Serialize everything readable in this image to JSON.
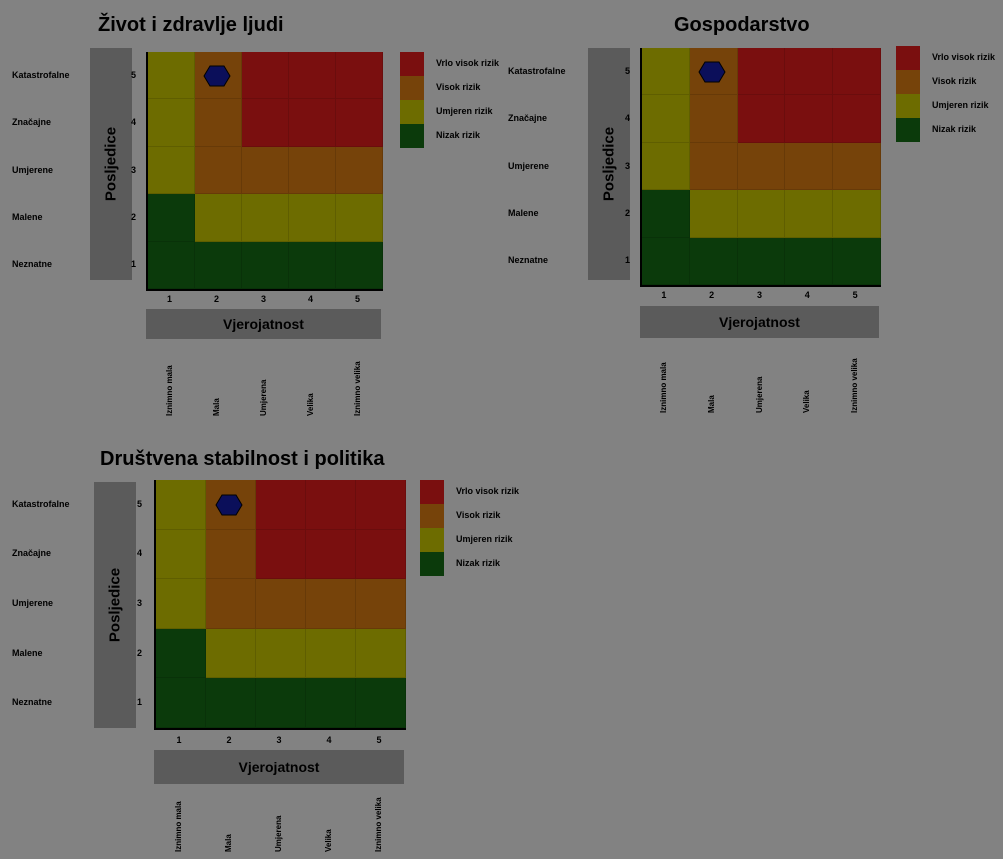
{
  "colors": {
    "background": "#828282",
    "band": "#5b5b5b",
    "low": "#0b3a0b",
    "moderate": "#6d6c00",
    "high": "#76430a",
    "very_high": "#7a0f0f",
    "marker": "#0b0f5a"
  },
  "chart_data": [
    {
      "type": "heatmap",
      "title": "Život i zdravlje ljudi",
      "xlabel": "Vjerojatnost",
      "ylabel": "Posljedice",
      "x_ticks": [
        "1",
        "2",
        "3",
        "4",
        "5"
      ],
      "x_tick_names": [
        "Iznimno mala",
        "Mala",
        "Umjerena",
        "Velika",
        "Iznimno velika"
      ],
      "y_ticks": [
        "1",
        "2",
        "3",
        "4",
        "5"
      ],
      "y_tick_names": [
        "Neznatne",
        "Malene",
        "Umjerene",
        "Značajne",
        "Katastrofalne"
      ],
      "legend": [
        "Vrlo visok rizik",
        "Visok rizik",
        "Umjeren rizik",
        "Nizak rizik"
      ],
      "legend_placement": "right",
      "risk_levels_by_row": [
        [
          1,
          1,
          1,
          1,
          1
        ],
        [
          1,
          2,
          2,
          2,
          2
        ],
        [
          2,
          3,
          3,
          3,
          3
        ],
        [
          2,
          3,
          4,
          4,
          4
        ],
        [
          2,
          3,
          4,
          4,
          4
        ]
      ],
      "marker": {
        "shape": "hexagon",
        "probability": 2,
        "consequence": 5
      }
    },
    {
      "type": "heatmap",
      "title": "Gospodarstvo",
      "xlabel": "Vjerojatnost",
      "ylabel": "Posljedice",
      "x_ticks": [
        "1",
        "2",
        "3",
        "4",
        "5"
      ],
      "x_tick_names": [
        "Iznimno mala",
        "Mala",
        "Umjerena",
        "Velika",
        "Iznimno velika"
      ],
      "y_ticks": [
        "1",
        "2",
        "3",
        "4",
        "5"
      ],
      "y_tick_names": [
        "Neznatne",
        "Malene",
        "Umjerene",
        "Značajne",
        "Katastrofalne"
      ],
      "legend": [
        "Vrlo visok rizik",
        "Visok rizik",
        "Umjeren rizik",
        "Nizak rizik"
      ],
      "legend_placement": "right",
      "risk_levels_by_row": [
        [
          1,
          1,
          1,
          1,
          1
        ],
        [
          1,
          2,
          2,
          2,
          2
        ],
        [
          2,
          3,
          3,
          3,
          3
        ],
        [
          2,
          3,
          4,
          4,
          4
        ],
        [
          2,
          3,
          4,
          4,
          4
        ]
      ],
      "marker": {
        "shape": "hexagon",
        "probability": 2,
        "consequence": 5
      }
    },
    {
      "type": "heatmap",
      "title": "Društvena stabilnost i politika",
      "xlabel": "Vjerojatnost",
      "ylabel": "Posljedice",
      "x_ticks": [
        "1",
        "2",
        "3",
        "4",
        "5"
      ],
      "x_tick_names": [
        "Iznimno mala",
        "Mala",
        "Umjerena",
        "Velika",
        "Iznimno velika"
      ],
      "y_ticks": [
        "1",
        "2",
        "3",
        "4",
        "5"
      ],
      "y_tick_names": [
        "Neznatne",
        "Malene",
        "Umjerene",
        "Značajne",
        "Katastrofalne"
      ],
      "legend": [
        "Vrlo visok rizik",
        "Visok rizik",
        "Umjeren rizik",
        "Nizak rizik"
      ],
      "legend_placement": "right",
      "risk_levels_by_row": [
        [
          1,
          1,
          1,
          1,
          1
        ],
        [
          1,
          2,
          2,
          2,
          2
        ],
        [
          2,
          3,
          3,
          3,
          3
        ],
        [
          2,
          3,
          4,
          4,
          4
        ],
        [
          2,
          3,
          4,
          4,
          4
        ]
      ],
      "marker": {
        "shape": "hexagon",
        "probability": 2,
        "consequence": 5
      }
    }
  ]
}
